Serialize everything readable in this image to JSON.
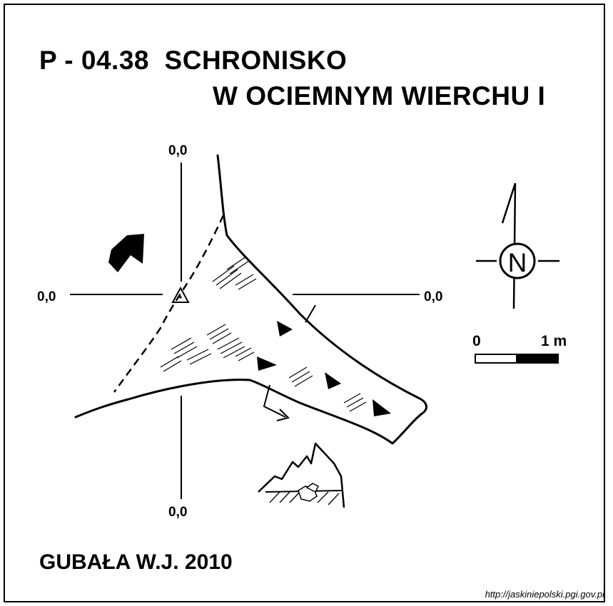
{
  "title": {
    "line1": "P - 04.38  SCHRONISKO",
    "line2": "W OCIEMNYM WIERCHU I"
  },
  "axes": {
    "top": "0,0",
    "left": "0,0",
    "right": "0,0",
    "bottom": "0,0"
  },
  "compass": {
    "letter": "N"
  },
  "scale": {
    "start": "0",
    "end": "1 m"
  },
  "author": "GUBAŁA W.J. 2010",
  "source_url": "http://jaskiniepolski.pgi.gov.pl"
}
